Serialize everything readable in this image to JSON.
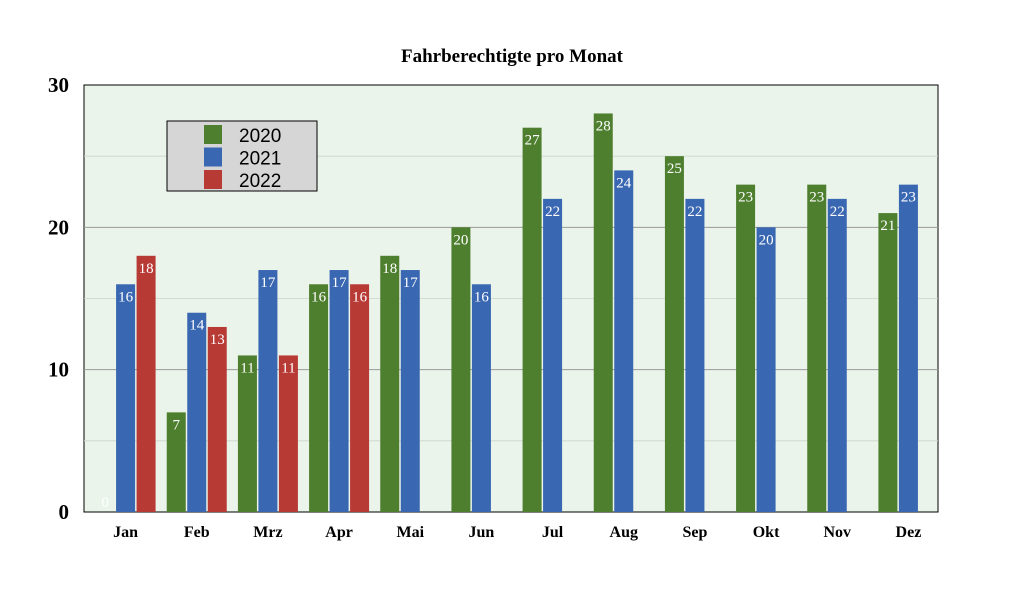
{
  "chart_data": {
    "type": "bar",
    "title": "Fahrberechtigte pro Monat",
    "xlabel": "",
    "ylabel": "",
    "ylim": [
      0,
      30
    ],
    "yticks": [
      0,
      10,
      20,
      30
    ],
    "grid": true,
    "legend_position": "top-left",
    "plot_background": "#eaf4ea",
    "categories": [
      "Jan",
      "Feb",
      "Mrz",
      "Apr",
      "Mai",
      "Jun",
      "Jul",
      "Aug",
      "Sep",
      "Okt",
      "Nov",
      "Dez"
    ],
    "series": [
      {
        "name": "2020",
        "color": "#4e7f2f",
        "values": [
          0,
          7,
          11,
          16,
          18,
          20,
          27,
          28,
          25,
          23,
          23,
          21
        ]
      },
      {
        "name": "2021",
        "color": "#3a67b2",
        "values": [
          16,
          14,
          17,
          17,
          17,
          16,
          22,
          24,
          22,
          20,
          22,
          23
        ]
      },
      {
        "name": "2022",
        "color": "#b83a35",
        "values": [
          18,
          13,
          11,
          16,
          null,
          null,
          null,
          null,
          null,
          null,
          null,
          null
        ]
      }
    ]
  }
}
